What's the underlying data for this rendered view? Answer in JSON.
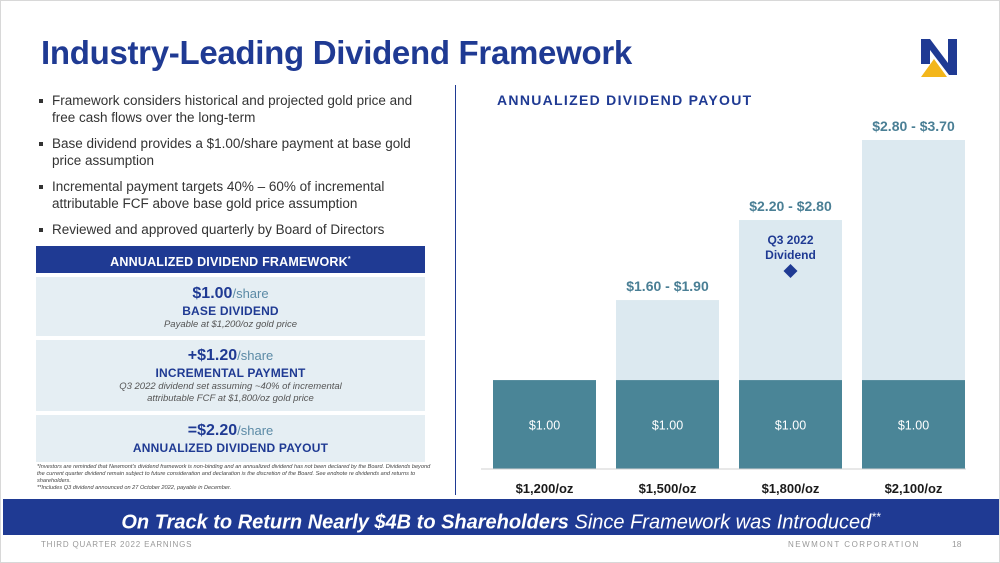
{
  "title": "Industry-Leading Dividend Framework",
  "bullets": [
    "Framework considers historical and projected gold price and free cash flows over the long-term",
    "Base dividend provides a $1.00/share payment at base gold price assumption",
    "Incremental payment targets 40% – 60% of incremental attributable FCF above base gold price assumption",
    "Reviewed and approved quarterly by Board of Directors"
  ],
  "framework": {
    "header": "ANNUALIZED DIVIDEND FRAMEWORK",
    "header_mark": "*",
    "boxes": [
      {
        "amount": "$1.00",
        "unit": "/share",
        "label": "BASE DIVIDEND",
        "desc": "Payable at $1,200/oz gold price"
      },
      {
        "amount": "+$1.20",
        "unit": "/share",
        "label": "INCREMENTAL PAYMENT",
        "desc": "Q3 2022 dividend set assuming ~40% of incremental attributable FCF at $1,800/oz gold price"
      },
      {
        "amount": "=$2.20",
        "unit": "/share",
        "label": "ANNUALIZED DIVIDEND PAYOUT",
        "desc": ""
      }
    ]
  },
  "footnotes": [
    "*Investors are reminded that Newmont's dividend framework is non-binding and an annualized dividend has not been declared by the Board. Dividends beyond the current quarter dividend remain subject to future consideration and declaration is the discretion of the Board. See endnote re dividends and returns to shareholders.",
    "**Includes Q3 dividend announced on 27 October 2022, payable in December."
  ],
  "banner": {
    "bold": "On Track to Return Nearly $4B to Shareholders",
    "rest": " Since Framework was Introduced",
    "mark": "**"
  },
  "footer": {
    "left": "THIRD QUARTER 2022 EARNINGS",
    "right": "NEWMONT CORPORATION",
    "page": "18"
  },
  "colors": {
    "navy": "#1f3a93",
    "teal": "#4a8597",
    "light_blue": "#dce9f0",
    "logo_gold": "#f3b61b"
  },
  "chart_data": {
    "type": "bar",
    "title": "ANNUALIZED DIVIDEND PAYOUT",
    "categories": [
      "$1,200/oz",
      "$1,500/oz",
      "$1,800/oz",
      "$2,100/oz"
    ],
    "series": [
      {
        "name": "Base dividend",
        "values": [
          1.0,
          1.0,
          1.0,
          1.0
        ],
        "labels": [
          "$1.00",
          "$1.00",
          "$1.00",
          "$1.00"
        ]
      },
      {
        "name": "Incremental payment",
        "low": [
          null,
          1.6,
          2.2,
          2.8
        ],
        "high": [
          null,
          1.9,
          2.8,
          3.7
        ]
      }
    ],
    "range_labels": [
      "",
      "$1.60 - $1.90",
      "$2.20 - $2.80",
      "$2.80 - $3.70"
    ],
    "annotation": {
      "category": "$1,800/oz",
      "value": 2.2,
      "text": [
        "Q3 2022",
        "Dividend"
      ]
    },
    "ylim": [
      0,
      3.7
    ],
    "grid": false
  }
}
